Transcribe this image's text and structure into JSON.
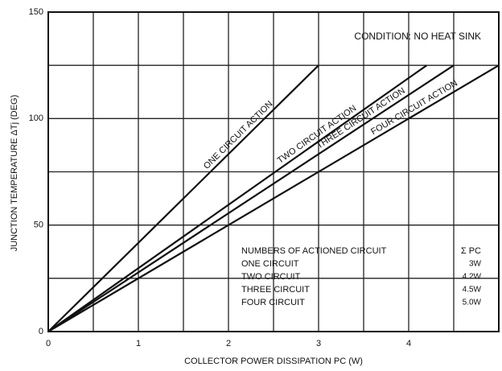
{
  "chart_data": {
    "type": "line",
    "xlabel": "COLLECTOR POWER DISSIPATION PC (W)",
    "ylabel": "JUNCTION TEMPERATURE ΔTj (DEG)",
    "annotation": "CONDITION: NO HEAT SINK",
    "xlim": [
      0,
      5
    ],
    "ylim": [
      0,
      150
    ],
    "xticks": [
      0,
      1,
      2,
      3,
      4
    ],
    "yticks": [
      0,
      50,
      100,
      150
    ],
    "grid": true,
    "series": [
      {
        "name": "ONE CIRCUIT ACTION",
        "color": "#111111",
        "x": [
          0,
          3
        ],
        "values": [
          0,
          125
        ]
      },
      {
        "name": "TWO CIRCUIT ACTION",
        "color": "#111111",
        "x": [
          0,
          4.2
        ],
        "values": [
          0,
          125
        ]
      },
      {
        "name": "THREE CIRCUIT ACTION",
        "color": "#111111",
        "x": [
          0,
          4.5
        ],
        "values": [
          0,
          125
        ]
      },
      {
        "name": "FOUR CIRCUIT ACTION",
        "color": "#111111",
        "x": [
          0,
          5
        ],
        "values": [
          0,
          125
        ]
      }
    ],
    "table": {
      "header": [
        "NUMBERS OF ACTIONED CIRCUIT",
        "Σ PC"
      ],
      "rows": [
        [
          "ONE CIRCUIT",
          "3W"
        ],
        [
          "TWO CIRCUIT",
          "4.2W"
        ],
        [
          "THREE CIRCUIT",
          "4.5W"
        ],
        [
          "FOUR CIRCUIT",
          "5.0W"
        ]
      ]
    }
  }
}
